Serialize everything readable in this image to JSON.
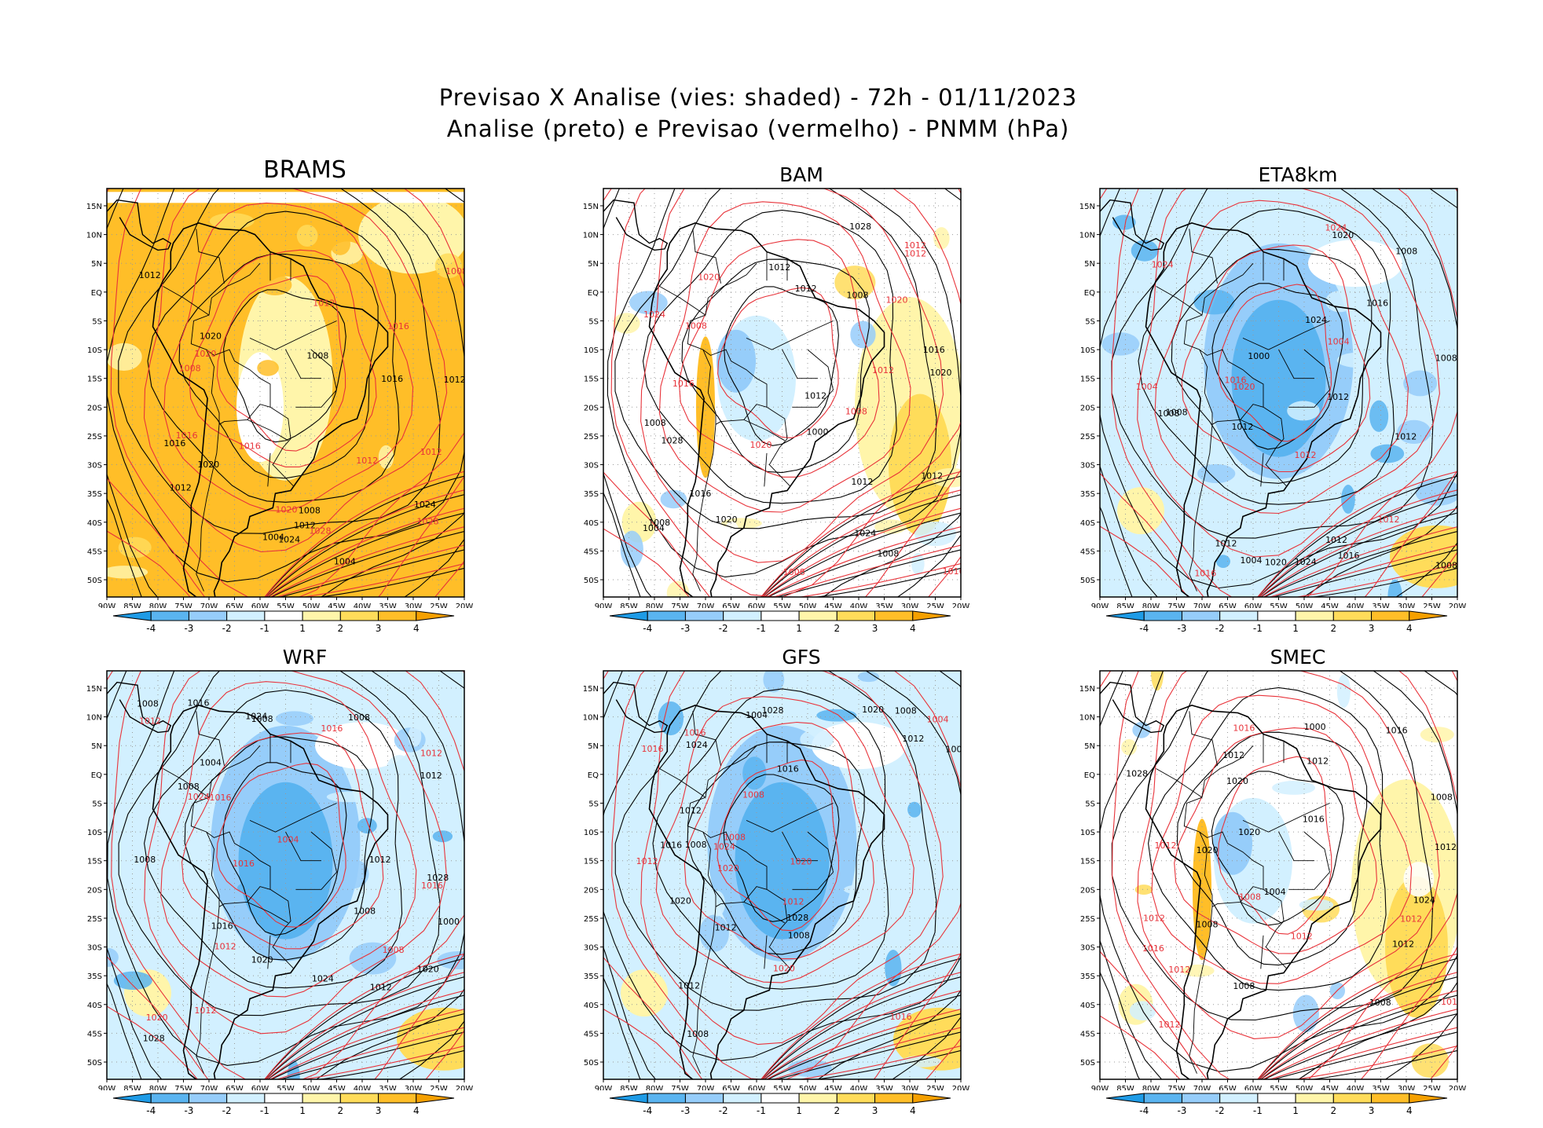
{
  "figure": {
    "title_line1": "Previsao X Analise (vies: shaded) - 72h - 01/11/2023",
    "title_line2": "Analise (preto) e Previsao (vermelho) - PNMM (hPa)"
  },
  "axes": {
    "lat_labels": [
      "15N",
      "10N",
      "5N",
      "EQ",
      "5S",
      "10S",
      "15S",
      "20S",
      "25S",
      "30S",
      "35S",
      "40S",
      "45S",
      "50S"
    ],
    "lon_labels": [
      "90W",
      "85W",
      "80W",
      "75W",
      "70W",
      "65W",
      "60W",
      "55W",
      "50W",
      "45W",
      "40W",
      "35W",
      "30W",
      "25W",
      "20W"
    ]
  },
  "colorbar": {
    "labels": [
      "-4",
      "-3",
      "-2",
      "-1",
      "1",
      "2",
      "3",
      "4"
    ],
    "colors": [
      "#1e9be6",
      "#5ab4f0",
      "#96cdfa",
      "#d2f0ff",
      "#ffffff",
      "#fff5aa",
      "#ffdc5a",
      "#ffbe28",
      "#f5a000"
    ]
  },
  "panels": [
    {
      "name": "BRAMS",
      "bias": "warm",
      "contours_black": [
        "1004",
        "1008",
        "1008",
        "1012",
        "1012",
        "1012",
        "1012",
        "1016",
        "1016",
        "1020",
        "1020",
        "1024",
        "1024",
        "1004"
      ],
      "contours_red": [
        "1012",
        "1012",
        "1016",
        "1016",
        "1020",
        "1020",
        "1016",
        "1028",
        "1028",
        "1012",
        "1008",
        "1008"
      ]
    },
    {
      "name": "BAM",
      "bias": "mixed",
      "contours_black": [
        "1012",
        "1008",
        "1012",
        "1008",
        "1012",
        "1008",
        "1012",
        "1016",
        "1020",
        "1012",
        "1016",
        "1024",
        "1020",
        "1028",
        "1028",
        "1008",
        "1004",
        "1000"
      ],
      "contours_red": [
        "1008",
        "1012",
        "1008",
        "1008",
        "1012",
        "1020",
        "1020",
        "1016",
        "1024",
        "1016",
        "1012",
        "1020"
      ]
    },
    {
      "name": "ETA8km",
      "bias": "cool",
      "contours_black": [
        "1012",
        "1012",
        "1008",
        "1008",
        "1008",
        "1008",
        "1012",
        "1012",
        "1016",
        "1016",
        "1020",
        "1024",
        "1020",
        "1024",
        "1012",
        "1008",
        "1004",
        "1000"
      ],
      "contours_red": [
        "1012",
        "1004",
        "1004",
        "1016",
        "1020",
        "1016",
        "1024",
        "1024",
        "1012"
      ]
    },
    {
      "name": "WRF",
      "bias": "cool",
      "contours_black": [
        "1012",
        "1008",
        "1008",
        "1008",
        "1008",
        "1012",
        "1012",
        "1008",
        "1016",
        "1020",
        "1020",
        "1024",
        "1028",
        "1028",
        "1024",
        "1016",
        "1008",
        "1004",
        "1000"
      ],
      "contours_red": [
        "1012",
        "1012",
        "1008",
        "1012",
        "1016",
        "1016",
        "1020",
        "1024",
        "1012",
        "1016",
        "1016",
        "1004"
      ]
    },
    {
      "name": "GFS",
      "bias": "cool",
      "contours_black": [
        "1012",
        "1008",
        "1012",
        "1008",
        "1012",
        "1008",
        "1012",
        "1016",
        "1020",
        "1020",
        "1016",
        "1024",
        "1028",
        "1028",
        "1008",
        "1004",
        "1000"
      ],
      "contours_red": [
        "1012",
        "1008",
        "1004",
        "1008",
        "1012",
        "1016",
        "1020",
        "1024",
        "1020",
        "1016",
        "1016",
        "1020"
      ]
    },
    {
      "name": "SMEC",
      "bias": "mixed",
      "contours_black": [
        "1012",
        "1008",
        "1012",
        "1008",
        "1012",
        "1008",
        "1012",
        "1016",
        "1020",
        "1020",
        "1016",
        "1028",
        "1024",
        "1008",
        "1004",
        "1000",
        "1020"
      ],
      "contours_red": [
        "1012",
        "1012",
        "1012",
        "1016",
        "1012",
        "1012",
        "1012",
        "1008",
        "1016",
        "1016"
      ]
    }
  ]
}
